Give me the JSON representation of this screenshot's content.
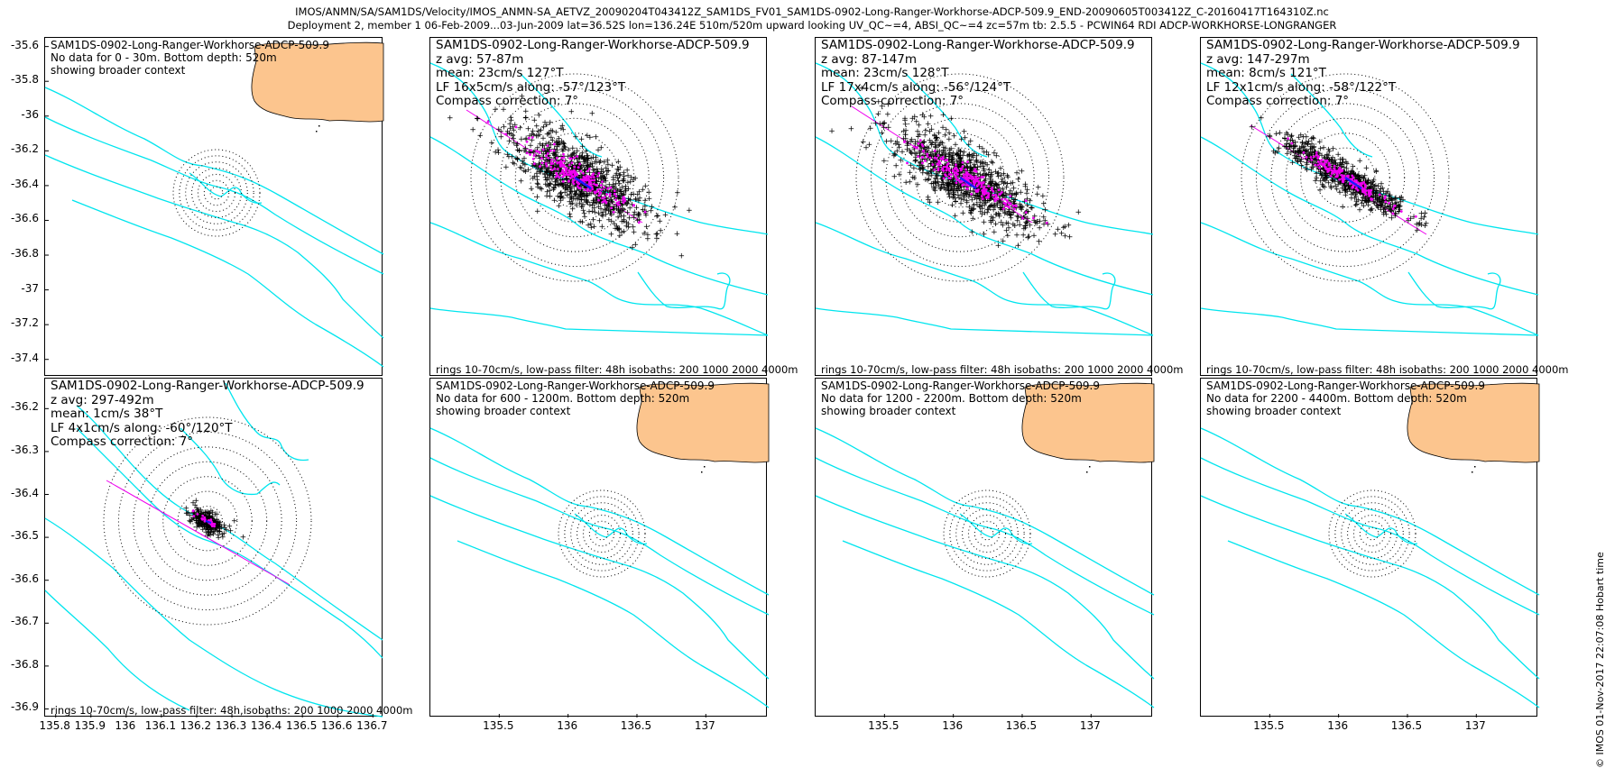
{
  "figure": {
    "title_line1": "IMOS/ANMN/SA/SAM1DS/Velocity/IMOS_ANMN-SA_AETVZ_20090204T043412Z_SAM1DS_FV01_SAM1DS-0902-Long-Ranger-Workhorse-ADCP-509.9_END-20090605T003412Z_C-20160417T164310Z.nc",
    "title_line2": "Deployment 2, member 1 06-Feb-2009...03-Jun-2009 lat=36.52S lon=136.24E 510m/520m upward looking UV_QC~=4, ABSI_QC~=4 zc=57m tb: 2.5.5 - PCWIN64 RDI ADCP-WORKHORSE-LONGRANGER",
    "stamp": "© IMOS 01-Nov-2017 22:07:08 Hobart time"
  },
  "colors": {
    "isobath": "#00e5ee",
    "land": "#fcc58e",
    "points": "#000000",
    "lowpass": "#ee00ee",
    "mean": "#1a1aff"
  },
  "chart_data": [
    {
      "type": "scatter",
      "panel": 1,
      "lines": [
        "SAM1DS-0902-Long-Ranger-Workhorse-ADCP-509.9",
        "No data for 0 - 30m. Bottom depth: 520m",
        "showing broader context"
      ],
      "footer": "",
      "x_ticks": [],
      "y_ticks": [
        -35.6,
        -35.8,
        -36,
        -36.2,
        -36.4,
        -36.6,
        -36.8,
        -37,
        -37.2,
        -37.4
      ],
      "xlim": [
        135.77,
        136.73
      ],
      "ylim": [
        -37.5,
        -35.55
      ],
      "has_data": false
    },
    {
      "type": "scatter",
      "panel": 2,
      "lines": [
        "SAM1DS-0902-Long-Ranger-Workhorse-ADCP-509.9",
        "z avg: 57-87m",
        "mean: 23cm/s 127°T",
        "LF 16x5cm/s along: -57°/123°T",
        "Compass correction: 7°"
      ],
      "footer": "rings 10-70cm/s, low-pass filter: 48h isobaths: 200 1000 2000 4000m",
      "x_ticks": [],
      "y_ticks": [],
      "xlim": [
        135.0,
        137.45
      ],
      "has_data": true,
      "mean_cm_s": 23,
      "mean_dir_T": 127,
      "lf_major_cm_s": 16,
      "lf_minor_cm_s": 5,
      "lf_along_deg_T": 123
    },
    {
      "type": "scatter",
      "panel": 3,
      "lines": [
        "SAM1DS-0902-Long-Ranger-Workhorse-ADCP-509.9",
        "z avg: 87-147m",
        "mean: 23cm/s 128°T",
        "LF 17x4cm/s along: -56°/124°T",
        "Compass correction: 7°"
      ],
      "footer": "rings 10-70cm/s, low-pass filter: 48h isobaths: 200 1000 2000 4000m",
      "x_ticks": [],
      "y_ticks": [],
      "xlim": [
        135.0,
        137.45
      ],
      "has_data": true,
      "mean_cm_s": 23,
      "mean_dir_T": 128,
      "lf_major_cm_s": 17,
      "lf_minor_cm_s": 4,
      "lf_along_deg_T": 124
    },
    {
      "type": "scatter",
      "panel": 4,
      "lines": [
        "SAM1DS-0902-Long-Ranger-Workhorse-ADCP-509.9",
        "z avg: 147-297m",
        "mean: 8cm/s 121°T",
        "LF 12x1cm/s along: -58°/122°T",
        "Compass correction: 7°"
      ],
      "footer": "rings 10-70cm/s, low-pass filter: 48h isobaths: 200 1000 2000 4000m",
      "x_ticks": [],
      "y_ticks": [],
      "xlim": [
        135.0,
        137.45
      ],
      "has_data": true,
      "mean_cm_s": 8,
      "mean_dir_T": 121,
      "lf_major_cm_s": 12,
      "lf_minor_cm_s": 1,
      "lf_along_deg_T": 122
    },
    {
      "type": "scatter",
      "panel": 5,
      "lines": [
        "SAM1DS-0902-Long-Ranger-Workhorse-ADCP-509.9",
        "z avg: 297-492m",
        "mean: 1cm/s 38°T",
        "LF 4x1cm/s along: -60°/120°T",
        "Compass correction: 7°"
      ],
      "footer": "rings 10-70cm/s, low-pass filter: 48h,isobaths: 200 1000 2000 4000m",
      "x_ticks": [
        135.8,
        135.9,
        136,
        136.1,
        136.2,
        136.3,
        136.4,
        136.5,
        136.6,
        136.7
      ],
      "y_ticks": [
        -36.2,
        -36.3,
        -36.4,
        -36.5,
        -36.6,
        -36.7,
        -36.8,
        -36.9
      ],
      "xlim": [
        135.77,
        136.73
      ],
      "ylim": [
        -36.92,
        -36.13
      ],
      "has_data": true,
      "mean_cm_s": 1,
      "mean_dir_T": 38,
      "lf_major_cm_s": 4,
      "lf_minor_cm_s": 1,
      "lf_along_deg_T": 120
    },
    {
      "type": "scatter",
      "panel": 6,
      "lines": [
        "SAM1DS-0902-Long-Ranger-Workhorse-ADCP-509.9",
        "No data for 600 - 1200m. Bottom depth: 520m",
        "showing broader context"
      ],
      "footer": "",
      "x_ticks": [
        135.5,
        136,
        136.5,
        137
      ],
      "y_ticks": [],
      "xlim": [
        135.0,
        137.45
      ],
      "has_data": false
    },
    {
      "type": "scatter",
      "panel": 7,
      "lines": [
        "SAM1DS-0902-Long-Ranger-Workhorse-ADCP-509.9",
        "No data for 1200 - 2200m. Bottom depth: 520m",
        "showing broader context"
      ],
      "footer": "",
      "x_ticks": [
        135.5,
        136,
        136.5,
        137
      ],
      "y_ticks": [],
      "xlim": [
        135.0,
        137.45
      ],
      "has_data": false
    },
    {
      "type": "scatter",
      "panel": 8,
      "lines": [
        "SAM1DS-0902-Long-Ranger-Workhorse-ADCP-509.9",
        "No data for 2200 - 4400m. Bottom depth: 520m",
        "showing broader context"
      ],
      "footer": "",
      "x_ticks": [
        135.5,
        136,
        136.5,
        137
      ],
      "y_ticks": [],
      "xlim": [
        135.0,
        137.45
      ],
      "has_data": false
    }
  ]
}
